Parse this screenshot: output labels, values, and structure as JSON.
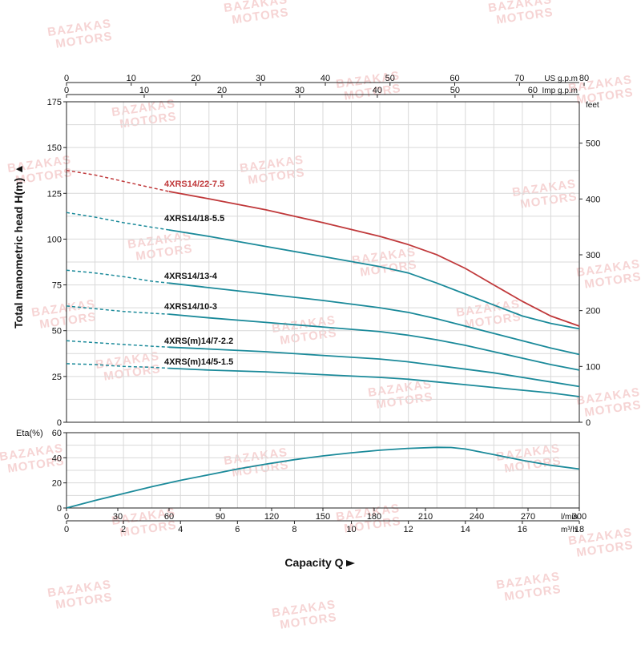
{
  "watermark": {
    "line1": "BAZAKAS",
    "line2": "MOTORS"
  },
  "colors": {
    "curve": "#1b8a9a",
    "highlight": "#c0393b",
    "grid": "#d9d9d9",
    "axis": "#222222",
    "watermark": "#f6d4d4"
  },
  "chart_data": {
    "type": "line",
    "xlabel": "Capacity Q",
    "top_axes": [
      {
        "unit": "US g.p.m",
        "ticks": [
          0,
          10,
          20,
          30,
          40,
          50,
          60,
          70,
          80
        ],
        "per_m3h": 4.4029
      },
      {
        "unit": "Imp g.p.m",
        "ticks": [
          0,
          10,
          20,
          30,
          40,
          50,
          60
        ],
        "per_m3h": 3.6662
      }
    ],
    "bottom_axes": [
      {
        "unit": "l/min",
        "ticks": [
          0,
          30,
          60,
          90,
          120,
          150,
          180,
          210,
          240,
          270,
          300
        ],
        "per_m3h": 16.6667
      },
      {
        "unit": "m³/h",
        "ticks": [
          0,
          2,
          4,
          6,
          8,
          10,
          12,
          14,
          16,
          18
        ],
        "per_m3h": 1
      }
    ],
    "head_plot": {
      "ylabel": "Total manometric head H(m)",
      "ylim": [
        0,
        175
      ],
      "yticks": [
        0,
        25,
        50,
        75,
        100,
        125,
        150,
        175
      ],
      "y2_unit": "feet",
      "y2_ticks": [
        0,
        100,
        200,
        300,
        400,
        500
      ],
      "x_unit": "m³/h",
      "xlim": [
        0,
        18
      ],
      "dashed_until": 3.6,
      "series": [
        {
          "name": "4XRS14/22-7.5",
          "highlight": true,
          "points": [
            [
              0,
              137.5
            ],
            [
              1,
              135
            ],
            [
              2,
              131.5
            ],
            [
              3,
              128
            ],
            [
              3.6,
              126
            ],
            [
              5,
              122
            ],
            [
              7,
              116
            ],
            [
              9,
              109
            ],
            [
              11,
              101.5
            ],
            [
              12,
              97
            ],
            [
              13,
              91.5
            ],
            [
              14,
              84
            ],
            [
              15,
              75
            ],
            [
              16,
              66
            ],
            [
              17,
              58
            ],
            [
              18,
              52.5
            ]
          ]
        },
        {
          "name": "4XRS14/18-5.5",
          "points": [
            [
              0,
              114.5
            ],
            [
              1,
              112
            ],
            [
              2,
              109
            ],
            [
              3,
              106.5
            ],
            [
              3.6,
              105
            ],
            [
              5,
              101.5
            ],
            [
              7,
              96
            ],
            [
              9,
              90.5
            ],
            [
              11,
              85
            ],
            [
              12,
              81.5
            ],
            [
              13,
              76
            ],
            [
              14,
              70
            ],
            [
              15,
              64
            ],
            [
              16,
              58
            ],
            [
              17,
              54
            ],
            [
              18,
              51
            ]
          ]
        },
        {
          "name": "4XRS14/13-4",
          "points": [
            [
              0,
              83
            ],
            [
              1,
              81.5
            ],
            [
              2,
              79.5
            ],
            [
              3,
              77
            ],
            [
              3.6,
              76
            ],
            [
              5,
              73.5
            ],
            [
              7,
              70
            ],
            [
              9,
              66.5
            ],
            [
              11,
              62.5
            ],
            [
              12,
              60
            ],
            [
              13,
              56.5
            ],
            [
              14,
              52.5
            ],
            [
              15,
              48.5
            ],
            [
              16,
              44.5
            ],
            [
              17,
              40.5
            ],
            [
              18,
              37
            ]
          ]
        },
        {
          "name": "4XRS14/10-3",
          "points": [
            [
              0,
              63.5
            ],
            [
              1,
              62
            ],
            [
              2,
              60.5
            ],
            [
              3,
              59.5
            ],
            [
              3.6,
              59
            ],
            [
              5,
              57
            ],
            [
              7,
              54.5
            ],
            [
              9,
              52
            ],
            [
              11,
              49.5
            ],
            [
              12,
              47.5
            ],
            [
              13,
              45
            ],
            [
              14,
              42
            ],
            [
              15,
              38.5
            ],
            [
              16,
              35
            ],
            [
              17,
              31.5
            ],
            [
              18,
              28.5
            ]
          ]
        },
        {
          "name": "4XRS(m)14/7-2.2",
          "points": [
            [
              0,
              44.5
            ],
            [
              1,
              43.5
            ],
            [
              2,
              42.5
            ],
            [
              3,
              41.5
            ],
            [
              3.6,
              41
            ],
            [
              5,
              40
            ],
            [
              7,
              38.5
            ],
            [
              9,
              36.5
            ],
            [
              11,
              34.5
            ],
            [
              12,
              33
            ],
            [
              13,
              31
            ],
            [
              14,
              29
            ],
            [
              15,
              27
            ],
            [
              16,
              24.5
            ],
            [
              17,
              22
            ],
            [
              18,
              19.5
            ]
          ]
        },
        {
          "name": "4XRS(m)14/5-1.5",
          "points": [
            [
              0,
              32
            ],
            [
              1,
              31.5
            ],
            [
              2,
              30.5
            ],
            [
              3,
              30
            ],
            [
              3.6,
              29.5
            ],
            [
              5,
              28.5
            ],
            [
              7,
              27.5
            ],
            [
              9,
              26
            ],
            [
              11,
              24.5
            ],
            [
              12,
              23.5
            ],
            [
              13,
              22
            ],
            [
              14,
              20.5
            ],
            [
              15,
              19
            ],
            [
              16,
              17.5
            ],
            [
              17,
              16
            ],
            [
              18,
              14
            ]
          ]
        }
      ]
    },
    "eta_plot": {
      "ylabel": "Eta(%)",
      "ylim": [
        0,
        60
      ],
      "yticks": [
        0,
        20,
        40,
        60
      ],
      "xlim": [
        0,
        18
      ],
      "points": [
        [
          0,
          0
        ],
        [
          1,
          6
        ],
        [
          2,
          11.5
        ],
        [
          3,
          17
        ],
        [
          4,
          22
        ],
        [
          5,
          26.5
        ],
        [
          6,
          31
        ],
        [
          7,
          35
        ],
        [
          8,
          38.5
        ],
        [
          9,
          41.5
        ],
        [
          10,
          44
        ],
        [
          11,
          46
        ],
        [
          12,
          47.5
        ],
        [
          13,
          48.3
        ],
        [
          13.5,
          48.2
        ],
        [
          14,
          47
        ],
        [
          15,
          42.5
        ],
        [
          16,
          38
        ],
        [
          17,
          34
        ],
        [
          18,
          31
        ]
      ]
    }
  }
}
